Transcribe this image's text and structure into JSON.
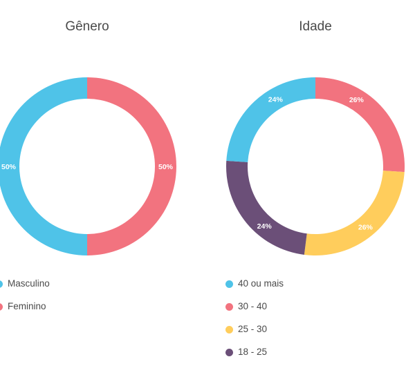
{
  "chart_data": [
    {
      "type": "pie",
      "title": "Gênero",
      "categories": [
        "Masculino",
        "Feminino"
      ],
      "values": [
        50,
        50
      ],
      "labels": [
        "50%",
        "50%"
      ],
      "colors": [
        "#4fc3e8",
        "#f2737f"
      ],
      "legend_position": "bottom"
    },
    {
      "type": "pie",
      "title": "Idade",
      "categories": [
        "40 ou mais",
        "30 - 40",
        "25 - 30",
        "18 - 25"
      ],
      "values": [
        24,
        26,
        26,
        24
      ],
      "labels": [
        "24%",
        "26%",
        "26%",
        "24%"
      ],
      "colors": [
        "#4fc3e8",
        "#f2737f",
        "#ffcd5c",
        "#6b4f78"
      ],
      "legend_position": "bottom"
    }
  ]
}
